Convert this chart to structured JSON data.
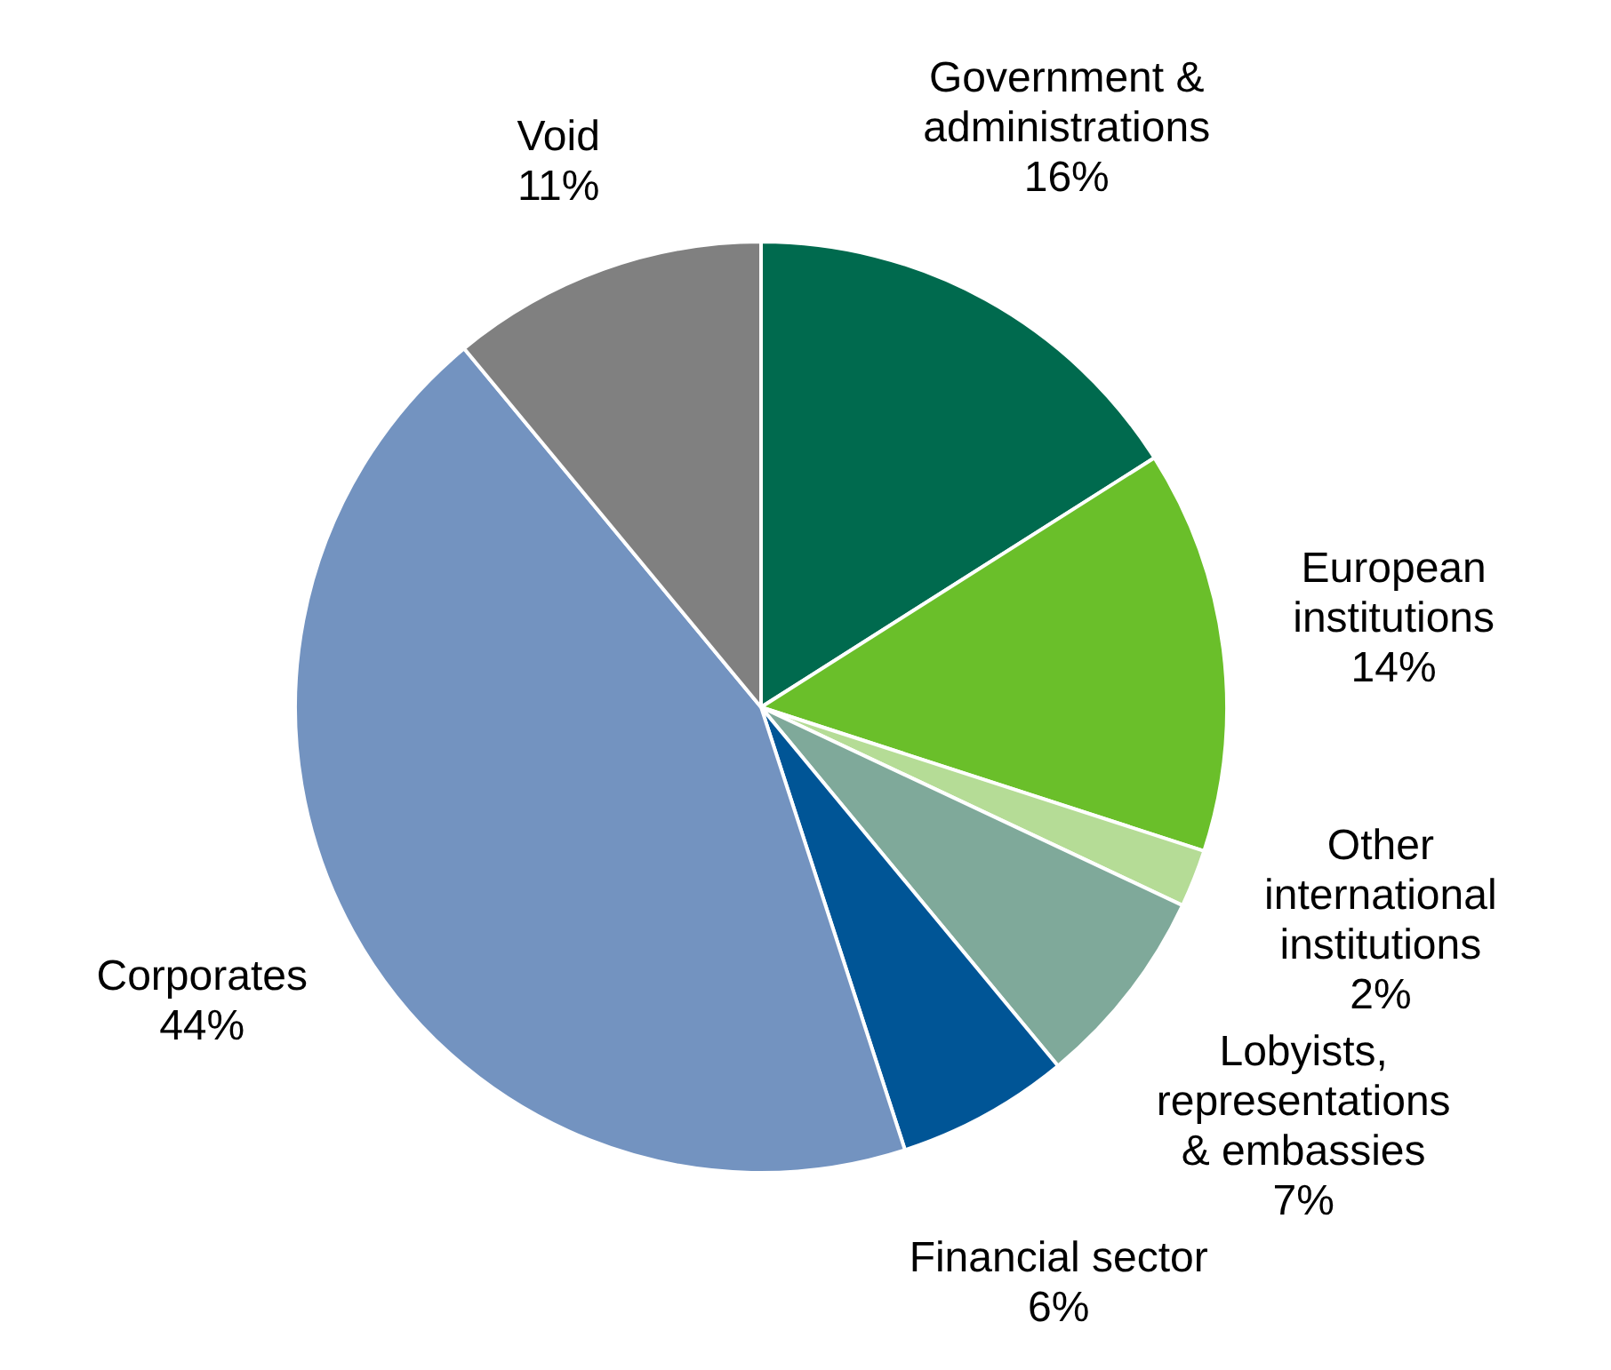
{
  "chart_data": {
    "type": "pie",
    "categories": [
      "Government & administrations",
      "European institutions",
      "Other international institutions",
      "Lobyists, representations & embassies",
      "Financial sector",
      "Corporates",
      "Void"
    ],
    "values": [
      16,
      14,
      2,
      7,
      6,
      44,
      11
    ],
    "value_labels": [
      "16%",
      "14%",
      "2%",
      "7%",
      "6%",
      "44%",
      "11%"
    ],
    "colors": [
      "#006a4e",
      "#6abf2a",
      "#b5dc96",
      "#7fa99a",
      "#005596",
      "#7393c0",
      "#808080"
    ],
    "legend": false
  }
}
